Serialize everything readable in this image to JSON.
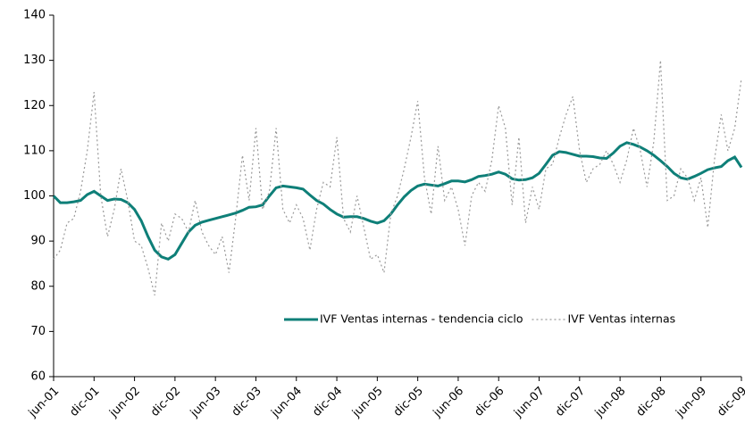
{
  "chart_data": {
    "type": "line",
    "categories": [
      "jun-01",
      null,
      null,
      null,
      null,
      null,
      "dic-01",
      null,
      null,
      null,
      null,
      null,
      "jun-02",
      null,
      null,
      null,
      null,
      null,
      "dic-02",
      null,
      null,
      null,
      null,
      null,
      "jun-03",
      null,
      null,
      null,
      null,
      null,
      "dic-03",
      null,
      null,
      null,
      null,
      null,
      "jun-04",
      null,
      null,
      null,
      null,
      null,
      "dic-04",
      null,
      null,
      null,
      null,
      null,
      "jun-05",
      null,
      null,
      null,
      null,
      null,
      "dic-05",
      null,
      null,
      null,
      null,
      null,
      "jun-06",
      null,
      null,
      null,
      null,
      null,
      "dic-06",
      null,
      null,
      null,
      null,
      null,
      "jun-07",
      null,
      null,
      null,
      null,
      null,
      "dic-07",
      null,
      null,
      null,
      null,
      null,
      "jun-08",
      null,
      null,
      null,
      null,
      null,
      "dic-08",
      null,
      null,
      null,
      null,
      null,
      "jun-09",
      null,
      null,
      null,
      null,
      null,
      "dic-09"
    ],
    "series": [
      {
        "name": "IVF Ventas internas - tendencia ciclo",
        "color": "#0e7f78",
        "style": "solid",
        "values": [
          100,
          98.5,
          98.5,
          98.7,
          99,
          100.3,
          101,
          100,
          99,
          99.3,
          99.2,
          98.5,
          97,
          94.5,
          91,
          88,
          86.5,
          86,
          87,
          89.5,
          92,
          93.5,
          94.2,
          94.6,
          95,
          95.4,
          95.8,
          96.2,
          96.8,
          97.5,
          97.6,
          98,
          100,
          101.8,
          102.2,
          102,
          101.8,
          101.5,
          100.2,
          99,
          98.2,
          97,
          96,
          95.3,
          95.4,
          95.4,
          95,
          94.4,
          94,
          94.5,
          96,
          98,
          99.8,
          101.2,
          102.2,
          102.6,
          102.4,
          102.2,
          102.7,
          103.3,
          103.3,
          103.1,
          103.6,
          104.3,
          104.5,
          104.8,
          105.3,
          104.8,
          103.8,
          103.5,
          103.6,
          104,
          105,
          107,
          109,
          109.8,
          109.6,
          109.2,
          108.8,
          108.8,
          108.7,
          108.4,
          108.3,
          109.5,
          111,
          111.8,
          111.4,
          110.8,
          110,
          109,
          107.8,
          106.5,
          105,
          104,
          103.7,
          104.3,
          105,
          105.8,
          106.2,
          106.5,
          107.8,
          108.6,
          106.3
        ]
      },
      {
        "name": "IVF Ventas internas",
        "color": "#999999",
        "style": "dotted",
        "values": [
          86,
          88,
          94,
          95,
          101,
          110,
          123,
          100,
          91,
          97,
          106,
          99,
          90,
          89,
          84,
          78,
          94,
          90,
          96,
          95,
          92,
          99,
          92,
          89,
          87,
          91,
          83,
          95,
          109,
          99,
          115,
          97,
          101,
          115,
          97,
          94,
          98,
          95,
          88,
          97,
          103,
          102,
          113,
          95,
          92,
          100,
          93,
          86,
          87,
          83,
          96,
          100,
          106,
          113,
          121,
          104,
          96,
          111,
          99,
          102,
          97,
          89,
          100,
          103,
          101,
          108,
          120,
          115,
          98,
          113,
          94,
          102,
          97,
          106,
          107,
          113,
          118,
          122,
          110,
          103,
          106,
          107,
          110,
          107,
          103,
          108,
          115,
          110,
          102,
          112,
          130,
          99,
          100,
          106,
          104,
          99,
          104,
          93,
          108,
          118,
          110,
          115,
          126
        ]
      }
    ],
    "ylim": [
      60,
      140
    ],
    "yticks": [
      60,
      70,
      80,
      90,
      100,
      110,
      120,
      130,
      140
    ],
    "legend": "right"
  }
}
